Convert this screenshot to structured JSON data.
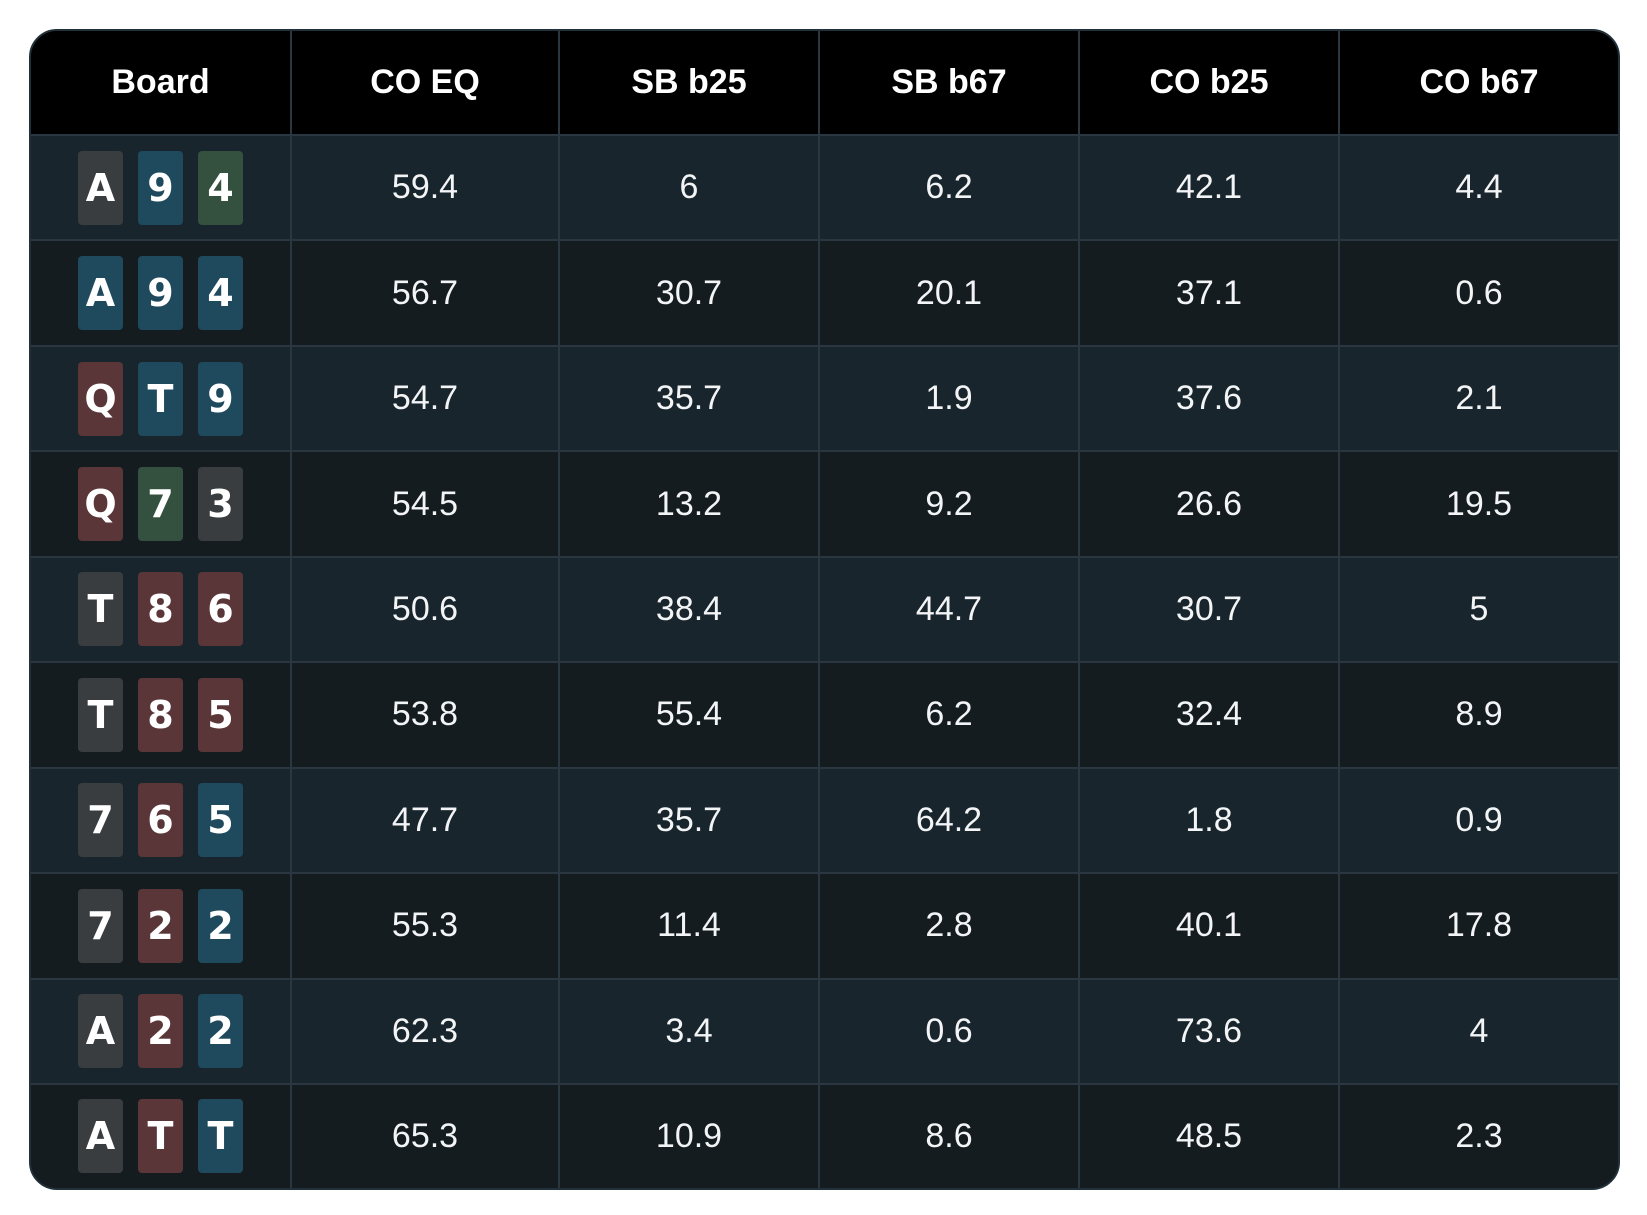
{
  "columns": [
    "Board",
    "CO EQ",
    "SB b25",
    "SB b67",
    "CO b25",
    "CO b67"
  ],
  "suit_colors": {
    "gray": "#393d3f",
    "blue": "#1f4a5d",
    "green": "#34503f",
    "red": "#5b3638"
  },
  "rows": [
    {
      "board": [
        {
          "rank": "A",
          "suit": "gray"
        },
        {
          "rank": "9",
          "suit": "blue"
        },
        {
          "rank": "4",
          "suit": "green"
        }
      ],
      "values": [
        "59.4",
        "6",
        "6.2",
        "42.1",
        "4.4"
      ]
    },
    {
      "board": [
        {
          "rank": "A",
          "suit": "blue"
        },
        {
          "rank": "9",
          "suit": "blue"
        },
        {
          "rank": "4",
          "suit": "blue"
        }
      ],
      "values": [
        "56.7",
        "30.7",
        "20.1",
        "37.1",
        "0.6"
      ]
    },
    {
      "board": [
        {
          "rank": "Q",
          "suit": "red"
        },
        {
          "rank": "T",
          "suit": "blue"
        },
        {
          "rank": "9",
          "suit": "blue"
        }
      ],
      "values": [
        "54.7",
        "35.7",
        "1.9",
        "37.6",
        "2.1"
      ]
    },
    {
      "board": [
        {
          "rank": "Q",
          "suit": "red"
        },
        {
          "rank": "7",
          "suit": "green"
        },
        {
          "rank": "3",
          "suit": "gray"
        }
      ],
      "values": [
        "54.5",
        "13.2",
        "9.2",
        "26.6",
        "19.5"
      ]
    },
    {
      "board": [
        {
          "rank": "T",
          "suit": "gray"
        },
        {
          "rank": "8",
          "suit": "red"
        },
        {
          "rank": "6",
          "suit": "red"
        }
      ],
      "values": [
        "50.6",
        "38.4",
        "44.7",
        "30.7",
        "5"
      ]
    },
    {
      "board": [
        {
          "rank": "T",
          "suit": "gray"
        },
        {
          "rank": "8",
          "suit": "red"
        },
        {
          "rank": "5",
          "suit": "red"
        }
      ],
      "values": [
        "53.8",
        "55.4",
        "6.2",
        "32.4",
        "8.9"
      ]
    },
    {
      "board": [
        {
          "rank": "7",
          "suit": "gray"
        },
        {
          "rank": "6",
          "suit": "red"
        },
        {
          "rank": "5",
          "suit": "blue"
        }
      ],
      "values": [
        "47.7",
        "35.7",
        "64.2",
        "1.8",
        "0.9"
      ]
    },
    {
      "board": [
        {
          "rank": "7",
          "suit": "gray"
        },
        {
          "rank": "2",
          "suit": "red"
        },
        {
          "rank": "2",
          "suit": "blue"
        }
      ],
      "values": [
        "55.3",
        "11.4",
        "2.8",
        "40.1",
        "17.8"
      ]
    },
    {
      "board": [
        {
          "rank": "A",
          "suit": "gray"
        },
        {
          "rank": "2",
          "suit": "red"
        },
        {
          "rank": "2",
          "suit": "blue"
        }
      ],
      "values": [
        "62.3",
        "3.4",
        "0.6",
        "73.6",
        "4"
      ]
    },
    {
      "board": [
        {
          "rank": "A",
          "suit": "gray"
        },
        {
          "rank": "T",
          "suit": "red"
        },
        {
          "rank": "T",
          "suit": "blue"
        }
      ],
      "values": [
        "65.3",
        "10.9",
        "8.6",
        "48.5",
        "2.3"
      ]
    }
  ]
}
